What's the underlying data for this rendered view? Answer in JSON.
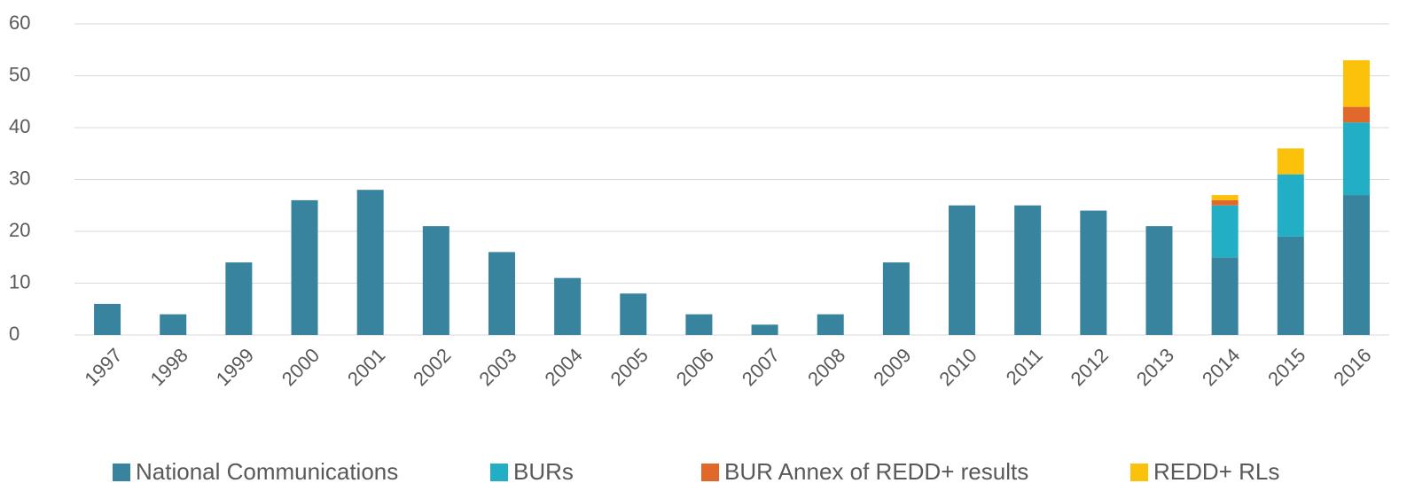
{
  "chart_data": {
    "type": "stacked_bar",
    "categories": [
      "1997",
      "1998",
      "1999",
      "2000",
      "2001",
      "2002",
      "2003",
      "2004",
      "2005",
      "2006",
      "2007",
      "2008",
      "2009",
      "2010",
      "2011",
      "2012",
      "2013",
      "2014",
      "2015",
      "2016"
    ],
    "series": [
      {
        "name": "National Communications",
        "color": "#38849f",
        "values": [
          6,
          4,
          14,
          26,
          28,
          21,
          16,
          11,
          8,
          4,
          2,
          4,
          14,
          25,
          25,
          24,
          21,
          15,
          19,
          27
        ]
      },
      {
        "name": "BURs",
        "color": "#22afc5",
        "values": [
          0,
          0,
          0,
          0,
          0,
          0,
          0,
          0,
          0,
          0,
          0,
          0,
          0,
          0,
          0,
          0,
          0,
          10,
          12,
          14
        ]
      },
      {
        "name": "BUR Annex of REDD+ results",
        "color": "#e0682a",
        "values": [
          0,
          0,
          0,
          0,
          0,
          0,
          0,
          0,
          0,
          0,
          0,
          0,
          0,
          0,
          0,
          0,
          0,
          1,
          0,
          3
        ]
      },
      {
        "name": "REDD+ RLs",
        "color": "#fcc10a",
        "values": [
          0,
          0,
          0,
          0,
          0,
          0,
          0,
          0,
          0,
          0,
          0,
          0,
          0,
          0,
          0,
          0,
          0,
          1,
          5,
          9
        ]
      }
    ],
    "ylim": [
      0,
      60
    ],
    "yticks": [
      0,
      10,
      20,
      30,
      40,
      50,
      60
    ],
    "grid": true,
    "legend": "bottom"
  }
}
